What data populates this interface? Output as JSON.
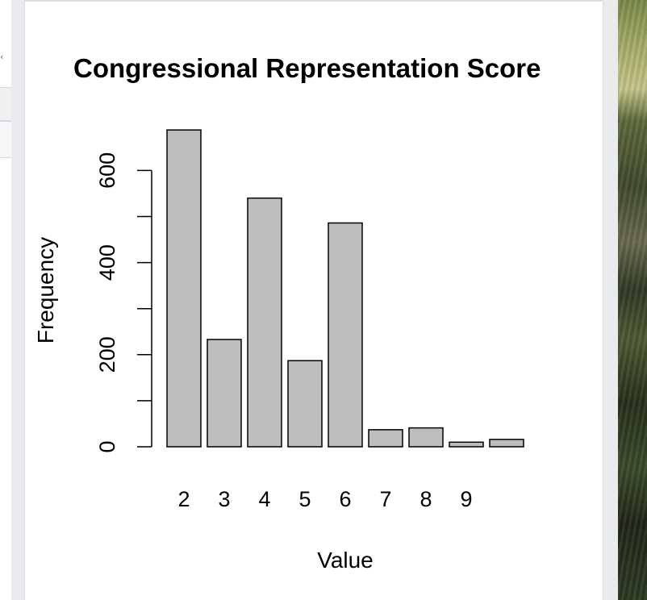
{
  "chart_data": {
    "type": "bar",
    "title": "Congressional Representation Score",
    "xlabel": "Value",
    "ylabel": "Frequency",
    "categories": [
      "2",
      "3",
      "4",
      "5",
      "6",
      "7",
      "8",
      "9",
      ""
    ],
    "values": [
      688,
      233,
      540,
      187,
      486,
      37,
      41,
      10,
      16
    ],
    "ylim": [
      0,
      690
    ],
    "yticks": [
      0,
      200,
      400,
      600
    ],
    "minor_yticks": [
      100,
      300,
      500
    ],
    "bar_fill": "#bebebe",
    "bar_stroke": "#000000",
    "grid": false
  },
  "colors": {
    "background": "#e9ebee",
    "panel": "#ffffff"
  }
}
